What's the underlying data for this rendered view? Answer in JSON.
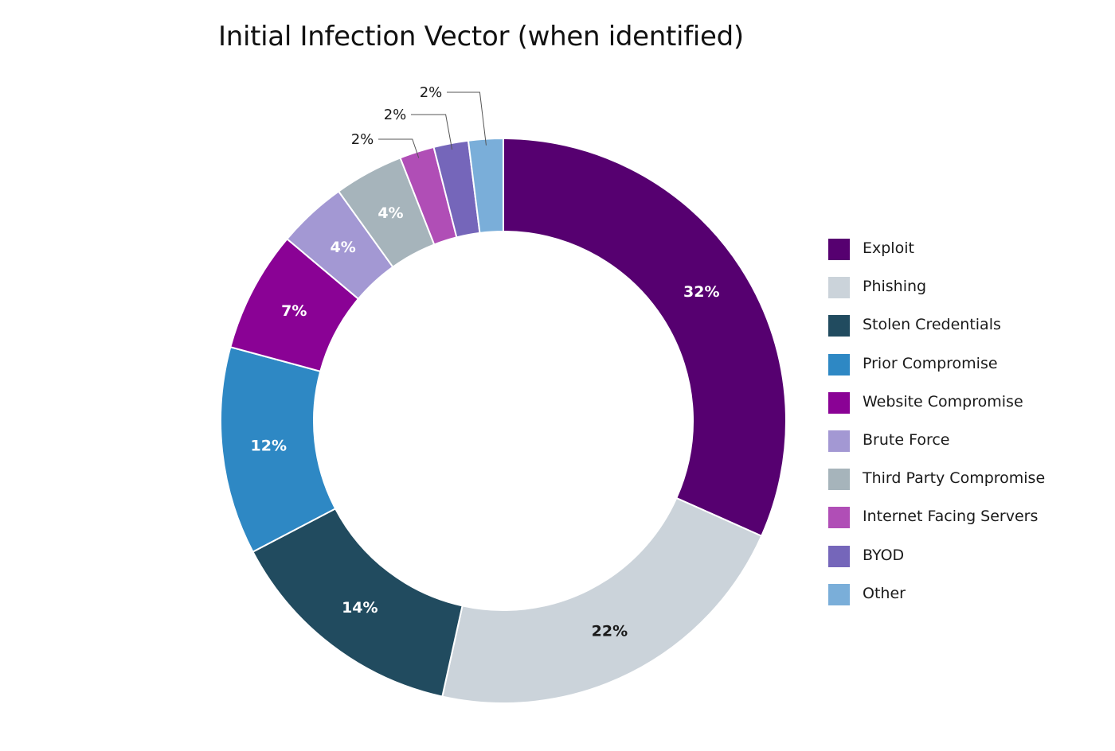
{
  "chart_data": {
    "type": "pie",
    "donut": true,
    "title": "Initial Infection Vector (when identified)",
    "legend_position": "right",
    "slices": [
      {
        "label": "Exploit",
        "value": 32,
        "value_label": "32%",
        "color": "#560070",
        "label_color": "#ffffff",
        "callout": false
      },
      {
        "label": "Phishing",
        "value": 22,
        "value_label": "22%",
        "color": "#cbd3da",
        "label_color": "#1a1a1a",
        "callout": false
      },
      {
        "label": "Stolen Credentials",
        "value": 14,
        "value_label": "14%",
        "color": "#214b5f",
        "label_color": "#ffffff",
        "callout": false
      },
      {
        "label": "Prior Compromise",
        "value": 12,
        "value_label": "12%",
        "color": "#2e88c4",
        "label_color": "#ffffff",
        "callout": false
      },
      {
        "label": "Website Compromise",
        "value": 7,
        "value_label": "7%",
        "color": "#8a0295",
        "label_color": "#ffffff",
        "callout": false
      },
      {
        "label": "Brute Force",
        "value": 4,
        "value_label": "4%",
        "color": "#a398d3",
        "label_color": "#ffffff",
        "callout": false
      },
      {
        "label": "Third Party Compromise",
        "value": 4,
        "value_label": "4%",
        "color": "#a6b4bb",
        "label_color": "#ffffff",
        "callout": false
      },
      {
        "label": "Internet Facing Servers",
        "value": 2,
        "value_label": "2%",
        "color": "#b04eb6",
        "label_color": "#1a1a1a",
        "callout": true
      },
      {
        "label": "BYOD",
        "value": 2,
        "value_label": "2%",
        "color": "#7566ba",
        "label_color": "#1a1a1a",
        "callout": true
      },
      {
        "label": "Other",
        "value": 2,
        "value_label": "2%",
        "color": "#7aaed9",
        "label_color": "#1a1a1a",
        "callout": true
      }
    ]
  }
}
